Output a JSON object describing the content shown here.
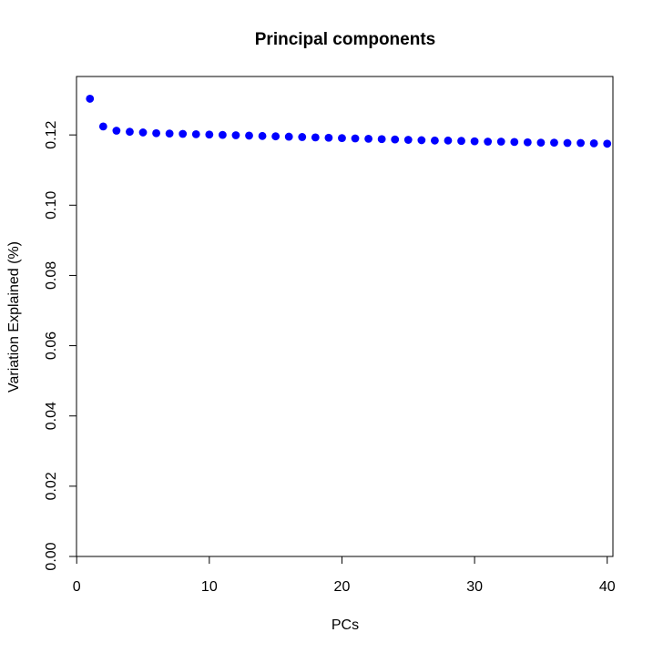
{
  "chart_data": {
    "type": "scatter",
    "title": "Principal components",
    "xlabel": "PCs",
    "ylabel": "Variation Explained (%)",
    "xlim": [
      0,
      40
    ],
    "ylim": [
      0,
      0.135
    ],
    "x_ticks": [
      0,
      10,
      20,
      30,
      40
    ],
    "x_tick_labels": [
      "0",
      "10",
      "20",
      "30",
      "40"
    ],
    "y_ticks": [
      0.0,
      0.02,
      0.04,
      0.06,
      0.08,
      0.1,
      0.12
    ],
    "y_tick_labels": [
      "0.00",
      "0.02",
      "0.04",
      "0.06",
      "0.08",
      "0.10",
      "0.12"
    ],
    "grid": false,
    "marker_color": "#0000ff",
    "x": [
      1,
      2,
      3,
      4,
      5,
      6,
      7,
      8,
      9,
      10,
      11,
      12,
      13,
      14,
      15,
      16,
      17,
      18,
      19,
      20,
      21,
      22,
      23,
      24,
      25,
      26,
      27,
      28,
      29,
      30,
      31,
      32,
      33,
      34,
      35,
      36,
      37,
      38,
      39,
      40
    ],
    "y": [
      0.1303,
      0.1224,
      0.1212,
      0.1209,
      0.1207,
      0.1205,
      0.1204,
      0.1203,
      0.1202,
      0.1201,
      0.12,
      0.1199,
      0.1198,
      0.1197,
      0.1196,
      0.1195,
      0.1194,
      0.1193,
      0.1192,
      0.1191,
      0.119,
      0.1189,
      0.1188,
      0.1187,
      0.1186,
      0.1185,
      0.1184,
      0.1184,
      0.1183,
      0.1182,
      0.1181,
      0.1181,
      0.118,
      0.1179,
      0.1178,
      0.1178,
      0.1177,
      0.1177,
      0.1176,
      0.1175
    ]
  }
}
